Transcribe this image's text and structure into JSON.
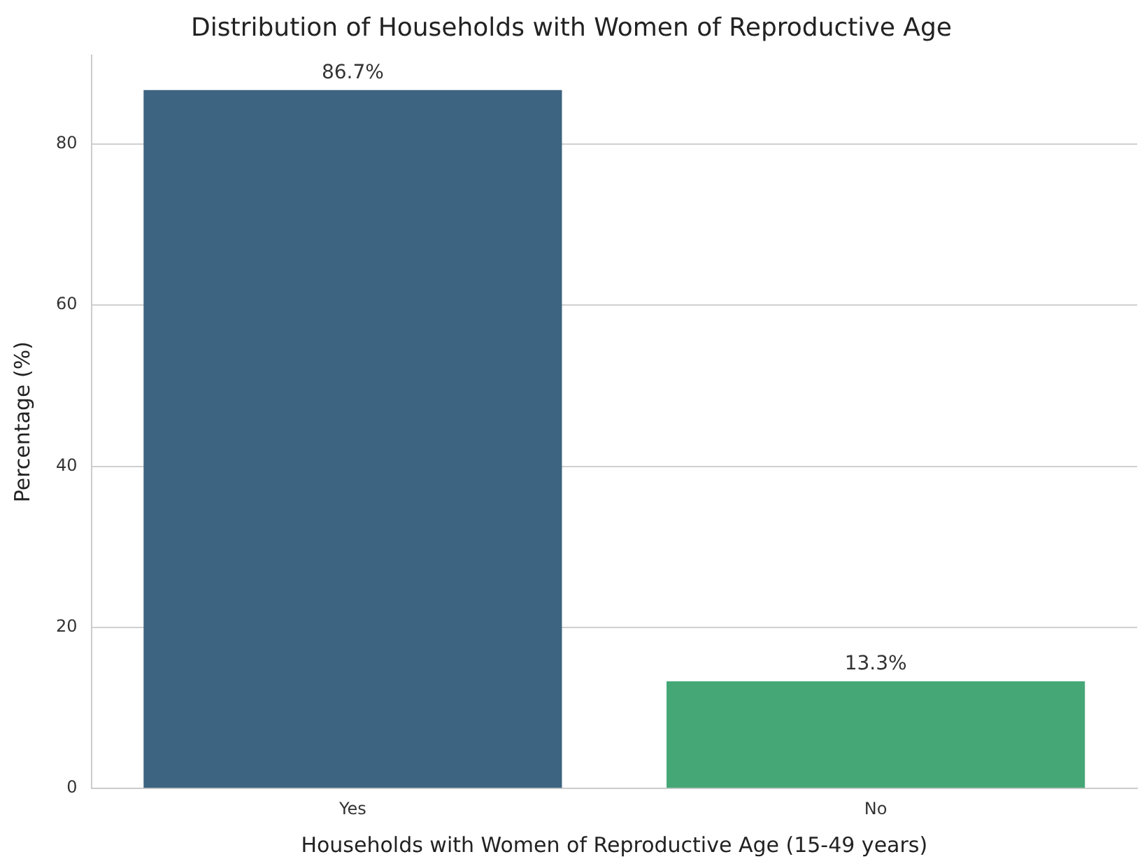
{
  "chart_data": {
    "type": "bar",
    "title": "Distribution of Households with Women of Reproductive Age",
    "xlabel": "Households with Women of Reproductive Age (15-49 years)",
    "ylabel": "Percentage (%)",
    "categories": [
      "Yes",
      "No"
    ],
    "values": [
      86.7,
      13.3
    ],
    "colors": [
      "#3d6480",
      "#45a776"
    ],
    "value_labels": [
      "86.7%",
      "13.3%"
    ],
    "ylim": [
      0,
      91
    ],
    "yticks": [
      0,
      20,
      40,
      60,
      80
    ],
    "grid": "y",
    "legend": false
  }
}
